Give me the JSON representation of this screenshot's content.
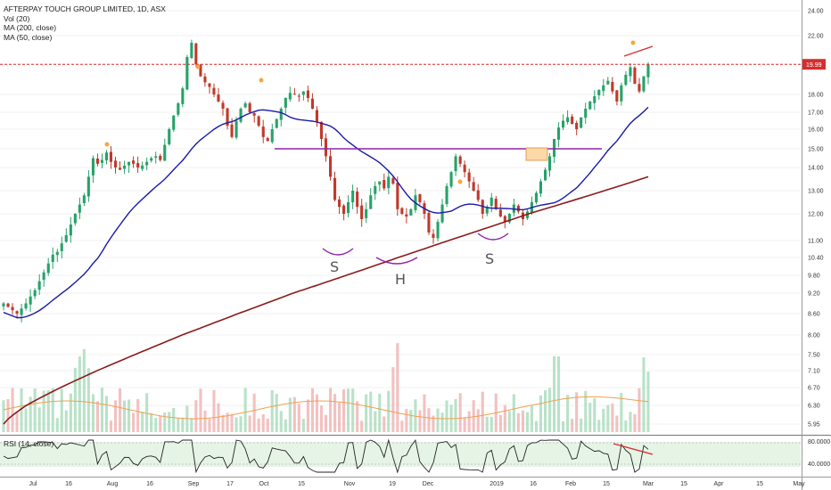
{
  "legend": {
    "title": "AFTERPAY TOUCH GROUP LIMITED, 1D, ASX",
    "vol": "Vol (20)",
    "ma200": "MA (200, close)",
    "ma50": "MA (50, close)",
    "rsi": "RSI (14, close)"
  },
  "colors": {
    "up": "#26a269",
    "down": "#c0392b",
    "ma50": "#1a1aa8",
    "ma200": "#8b1a1a",
    "neckline": "#8e24aa",
    "resistance": "#d32f2f",
    "volume_ma": "#f0a050",
    "rsi_line": "#222222",
    "rsi_band": "#e6f4e6"
  },
  "chart_data": {
    "type": "candlestick",
    "price_axis_ticks": [
      "24.00",
      "22.00",
      "20.00",
      "18.00",
      "17.00",
      "16.00",
      "15.00",
      "14.00",
      "13.00",
      "12.00",
      "11.00",
      "10.40",
      "9.80",
      "9.20",
      "8.60",
      "8.00",
      "7.50",
      "7.10",
      "6.70",
      "6.30",
      "5.95"
    ],
    "rsi_axis_ticks": [
      "80.0000",
      "40.0000"
    ],
    "x_labels": [
      "Jul",
      "16",
      "Aug",
      "16",
      "Sep",
      "17",
      "Oct",
      "15",
      "Nov",
      "19",
      "Dec",
      "2019",
      "16",
      "Feb",
      "15",
      "Mar",
      "15",
      "Apr",
      "15",
      "May"
    ],
    "current_price_label": "19.99",
    "current_price": 19.99,
    "pattern_labels": [
      "S",
      "H",
      "S"
    ],
    "neckline_price": 15.0,
    "closes": [
      8.9,
      8.8,
      8.7,
      8.6,
      8.75,
      8.9,
      9.1,
      9.3,
      9.6,
      9.9,
      10.2,
      10.5,
      10.6,
      10.9,
      11.2,
      11.6,
      12.0,
      12.4,
      12.8,
      13.6,
      14.5,
      14.2,
      14.4,
      14.8,
      14.3,
      14.0,
      13.9,
      14.1,
      14.3,
      14.2,
      14.0,
      14.1,
      14.3,
      14.5,
      14.6,
      14.4,
      15.2,
      16.0,
      16.8,
      17.5,
      18.4,
      20.5,
      21.5,
      20.0,
      19.2,
      18.8,
      18.5,
      18.0,
      17.6,
      17.2,
      16.2,
      15.6,
      16.5,
      17.2,
      17.5,
      17.0,
      16.8,
      16.2,
      15.6,
      15.4,
      16.0,
      16.6,
      17.2,
      17.8,
      18.1,
      18.0,
      17.9,
      18.2,
      17.8,
      17.2,
      16.4,
      15.5,
      14.6,
      13.6,
      12.6,
      12.3,
      12.0,
      12.5,
      13.0,
      12.3,
      11.8,
      12.2,
      12.8,
      13.2,
      13.4,
      13.1,
      13.6,
      13.3,
      12.2,
      12.0,
      11.9,
      12.2,
      12.8,
      12.5,
      12.0,
      11.3,
      11.1,
      11.7,
      12.4,
      13.2,
      13.8,
      14.6,
      14.2,
      13.8,
      13.4,
      13.0,
      12.6,
      12.0,
      12.3,
      12.7,
      12.2,
      11.9,
      11.7,
      12.0,
      12.4,
      12.1,
      11.8,
      12.1,
      12.5,
      12.9,
      13.4,
      13.9,
      14.6,
      15.5,
      16.1,
      16.5,
      16.7,
      16.3,
      16.0,
      16.7,
      17.2,
      17.6,
      17.9,
      18.3,
      18.6,
      18.9,
      18.2,
      17.6,
      18.6,
      19.3,
      19.8,
      18.7,
      18.2,
      19.2,
      19.99
    ]
  }
}
